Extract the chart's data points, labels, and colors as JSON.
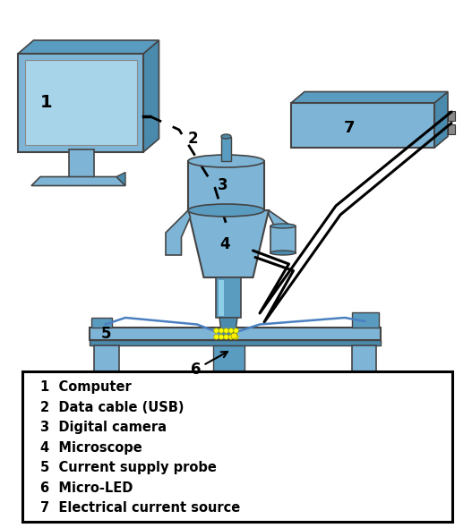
{
  "bg_color": "#ffffff",
  "light_blue": "#7eb5d6",
  "mid_blue": "#5a9bc0",
  "dark_blue": "#4a8aad",
  "legend_items": [
    "1  Computer",
    "2  Data cable (USB)",
    "3  Digital camera",
    "4  Microscope",
    "5  Current supply probe",
    "6  Micro-LED",
    "7  Electrical current source"
  ],
  "figsize": [
    5.27,
    5.9
  ],
  "dpi": 100
}
